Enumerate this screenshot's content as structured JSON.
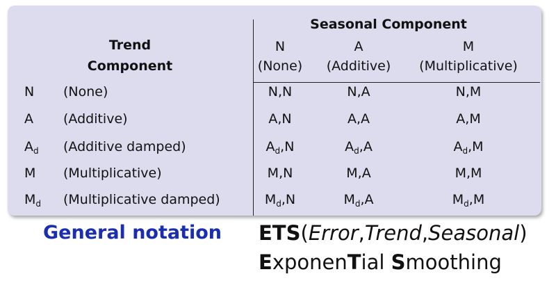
{
  "header": {
    "seasonal_title": "Seasonal Component",
    "trend_title_line1": "Trend",
    "trend_title_line2": "Component",
    "seasonal_cols": [
      {
        "code": "N",
        "name": "(None)"
      },
      {
        "code": "A",
        "name": "(Additive)"
      },
      {
        "code": "M",
        "name": "(Multiplicative)"
      }
    ]
  },
  "rows": [
    {
      "code": "N",
      "code_sub": "",
      "name": "(None)",
      "cells": [
        {
          "base": "N",
          "sub": "",
          "tail": ",N"
        },
        {
          "base": "N",
          "sub": "",
          "tail": ",A"
        },
        {
          "base": "N",
          "sub": "",
          "tail": ",M"
        }
      ]
    },
    {
      "code": "A",
      "code_sub": "",
      "name": "(Additive)",
      "cells": [
        {
          "base": "A",
          "sub": "",
          "tail": ",N"
        },
        {
          "base": "A",
          "sub": "",
          "tail": ",A"
        },
        {
          "base": "A",
          "sub": "",
          "tail": ",M"
        }
      ]
    },
    {
      "code": "A",
      "code_sub": "d",
      "name": "(Additive damped)",
      "cells": [
        {
          "base": "A",
          "sub": "d",
          "tail": ",N"
        },
        {
          "base": "A",
          "sub": "d",
          "tail": ",A"
        },
        {
          "base": "A",
          "sub": "d",
          "tail": ",M"
        }
      ]
    },
    {
      "code": "M",
      "code_sub": "",
      "name": "(Multiplicative)",
      "cells": [
        {
          "base": "M",
          "sub": "",
          "tail": ",N"
        },
        {
          "base": "M",
          "sub": "",
          "tail": ",A"
        },
        {
          "base": "M",
          "sub": "",
          "tail": ",M"
        }
      ]
    },
    {
      "code": "M",
      "code_sub": "d",
      "name": "(Multiplicative damped)",
      "cells": [
        {
          "base": "M",
          "sub": "d",
          "tail": ",N"
        },
        {
          "base": "M",
          "sub": "d",
          "tail": ",A"
        },
        {
          "base": "M",
          "sub": "d",
          "tail": ",M"
        }
      ]
    }
  ],
  "notation": {
    "label": "General notation",
    "ets_bold": "ETS",
    "open_paren": "(",
    "error": "Error",
    "comma1": ",",
    "trend": "Trend",
    "comma2": ",",
    "seasonal": "Seasonal",
    "close_paren": ")",
    "line2": [
      {
        "text": "E",
        "bold": true
      },
      {
        "text": "xponen",
        "bold": false
      },
      {
        "text": "T",
        "bold": true
      },
      {
        "text": "ial ",
        "bold": false
      },
      {
        "text": "S",
        "bold": true
      },
      {
        "text": "moothing",
        "bold": false
      }
    ]
  },
  "colors": {
    "panel": "#dcdcee",
    "notation_label": "#1a2fb0"
  }
}
